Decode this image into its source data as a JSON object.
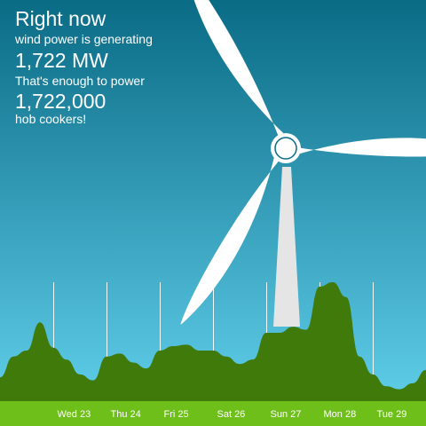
{
  "headline": {
    "heading": "Right now",
    "line1": "wind power is generating",
    "output": "1,722 MW",
    "line2": "That's enough to power",
    "count": "1,722,000",
    "line3": "hob cookers!"
  },
  "colors": {
    "sky_top": "#0a6b85",
    "sky_bottom": "#64d3ef",
    "area": "#3f7a0a",
    "ground": "#6fbf1a",
    "turbine": "#ffffff",
    "tower": "#e5e5e5"
  },
  "icons": {
    "turbine": "wind-turbine-icon"
  },
  "chart_data": {
    "type": "area",
    "title": "",
    "xlabel": "",
    "ylabel": "",
    "grid": true,
    "x_range": [
      "Tue 22",
      "Wed 30"
    ],
    "categories": [
      "Wed 23",
      "Thu 24",
      "Fri 25",
      "Sat 26",
      "Sun 27",
      "Mon 28",
      "Tue 29"
    ],
    "series": [
      {
        "values": [
          [
            "Tue 22 00:00",
            800
          ],
          [
            "Tue 22 06:00",
            1500
          ],
          [
            "Tue 22 12:00",
            1700
          ],
          [
            "Tue 22 18:00",
            2650
          ],
          [
            "Wed 23 00:00",
            1800
          ],
          [
            "Wed 23 06:00",
            1400
          ],
          [
            "Wed 23 12:00",
            900
          ],
          [
            "Wed 23 18:00",
            700
          ],
          [
            "Thu 24 00:00",
            1500
          ],
          [
            "Thu 24 06:00",
            1600
          ],
          [
            "Thu 24 12:00",
            1300
          ],
          [
            "Thu 24 18:00",
            1100
          ],
          [
            "Fri 25 00:00",
            1700
          ],
          [
            "Fri 25 06:00",
            1850
          ],
          [
            "Fri 25 12:00",
            1900
          ],
          [
            "Fri 25 18:00",
            1700
          ],
          [
            "Sat 26 00:00",
            1700
          ],
          [
            "Sat 26 06:00",
            1500
          ],
          [
            "Sat 26 12:00",
            1250
          ],
          [
            "Sat 26 18:00",
            1400
          ],
          [
            "Sun 27 00:00",
            2300
          ],
          [
            "Sun 27 06:00",
            2300
          ],
          [
            "Sun 27 12:00",
            2500
          ],
          [
            "Sun 27 18:00",
            2400
          ],
          [
            "Mon 28 00:00",
            3850
          ],
          [
            "Mon 28 06:00",
            4000
          ],
          [
            "Mon 28 12:00",
            3500
          ],
          [
            "Mon 28 18:00",
            1500
          ],
          [
            "Tue 29 00:00",
            900
          ],
          [
            "Tue 29 06:00",
            500
          ],
          [
            "Tue 29 12:00",
            400
          ],
          [
            "Tue 29 18:00",
            600
          ],
          [
            "Wed 30 00:00",
            1050
          ]
        ]
      }
    ]
  }
}
